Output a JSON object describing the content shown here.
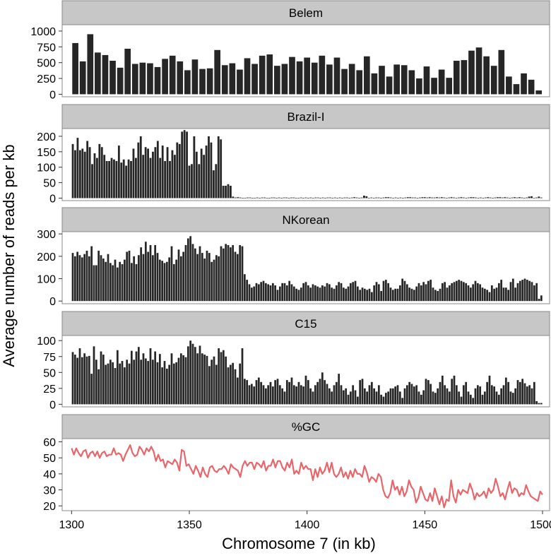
{
  "chart_data": {
    "type": "bar",
    "xlabel": "Chromosome 7 (in kb)",
    "ylabel": "Average number of reads per kb",
    "x_range": [
      1300,
      1500
    ],
    "xlim": [
      1296,
      1503
    ],
    "x_ticks": [
      1300,
      1350,
      1400,
      1450,
      1500
    ],
    "colors": {
      "bar": "#262626",
      "line": "#e8656a",
      "strip": "#c7c7c7",
      "panel_border": "#8a8a8a"
    },
    "panels": [
      {
        "name": "Belem",
        "type": "bar",
        "ylim": [
          -40,
          1100
        ],
        "y_ticks": [
          0,
          250,
          500,
          750,
          1000
        ],
        "values": [
          810,
          520,
          950,
          660,
          620,
          530,
          420,
          720,
          480,
          500,
          490,
          430,
          560,
          610,
          520,
          380,
          550,
          400,
          410,
          700,
          460,
          490,
          390,
          570,
          480,
          610,
          630,
          450,
          480,
          590,
          520,
          580,
          500,
          610,
          470,
          580,
          400,
          480,
          380,
          600,
          330,
          450,
          280,
          470,
          460,
          380,
          250,
          440,
          260,
          390,
          260,
          530,
          540,
          690,
          740,
          600,
          450,
          700,
          280,
          160,
          330,
          230,
          60
        ]
      },
      {
        "name": "Brazil-I",
        "type": "bar",
        "ylim": [
          -8,
          225
        ],
        "y_ticks": [
          0,
          50,
          100,
          150,
          200
        ],
        "values": [
          175,
          155,
          195,
          155,
          160,
          150,
          185,
          165,
          110,
          145,
          130,
          175,
          165,
          140,
          120,
          120,
          130,
          125,
          120,
          170,
          115,
          125,
          105,
          125,
          120,
          160,
          130,
          180,
          200,
          140,
          165,
          160,
          130,
          150,
          165,
          185,
          130,
          170,
          120,
          165,
          120,
          155,
          140,
          180,
          175,
          215,
          220,
          215,
          105,
          110,
          200,
          150,
          110,
          160,
          140,
          170,
          200,
          180,
          90,
          110,
          200,
          190,
          40,
          40,
          45,
          40,
          5,
          2,
          3,
          2,
          1,
          1,
          2,
          2,
          1,
          1,
          2,
          1,
          2,
          2,
          1,
          1,
          2,
          2,
          1,
          2,
          1,
          2,
          2,
          1,
          2,
          2,
          1,
          1,
          2,
          1,
          2,
          1,
          2,
          1,
          2,
          2,
          1,
          2,
          1,
          2,
          2,
          1,
          2,
          1,
          2,
          1,
          2,
          2,
          1,
          2,
          3,
          2,
          1,
          2,
          8,
          6,
          1,
          2,
          1,
          2,
          2,
          1,
          2,
          3,
          3,
          2,
          1,
          2,
          1,
          2,
          1,
          2,
          3,
          3,
          2,
          2,
          1,
          2,
          3,
          3,
          2,
          3,
          2,
          2,
          3,
          2,
          3,
          2,
          1,
          2,
          3,
          2,
          1,
          2,
          3,
          2,
          1,
          2,
          3,
          3,
          2,
          1,
          2,
          1,
          2,
          3,
          2,
          1,
          2,
          3,
          3,
          2,
          3,
          2,
          1,
          2,
          3,
          2,
          3,
          2,
          1,
          2,
          5,
          6,
          1,
          2,
          5,
          2
        ]
      },
      {
        "name": "NKorean",
        "type": "bar",
        "ylim": [
          -12,
          310
        ],
        "y_ticks": [
          0,
          100,
          200,
          300
        ],
        "values": [
          215,
          200,
          220,
          205,
          195,
          210,
          225,
          200,
          245,
          160,
          160,
          225,
          205,
          190,
          175,
          210,
          170,
          160,
          185,
          150,
          175,
          165,
          185,
          220,
          225,
          170,
          200,
          165,
          205,
          240,
          210,
          265,
          220,
          250,
          205,
          250,
          215,
          185,
          180,
          170,
          175,
          195,
          245,
          165,
          185,
          230,
          200,
          220,
          250,
          280,
          290,
          255,
          235,
          210,
          245,
          215,
          190,
          225,
          215,
          175,
          185,
          205,
          200,
          245,
          235,
          255,
          250,
          240,
          250,
          220,
          210,
          250,
          245,
          120,
          95,
          75,
          60,
          65,
          80,
          75,
          85,
          90,
          80,
          75,
          70,
          80,
          70,
          50,
          65,
          80,
          80,
          70,
          90,
          75,
          65,
          55,
          50,
          60,
          80,
          85,
          70,
          60,
          75,
          70,
          65,
          60,
          70,
          65,
          80,
          75,
          60,
          55,
          70,
          85,
          80,
          60,
          55,
          65,
          80,
          85,
          90,
          65,
          50,
          60,
          55,
          50,
          55,
          40,
          70,
          85,
          75,
          45,
          90,
          95,
          80,
          60,
          50,
          55,
          55,
          70,
          100,
          90,
          75,
          60,
          55,
          50,
          65,
          80,
          70,
          85,
          75,
          90,
          95,
          60,
          50,
          45,
          55,
          80,
          85,
          60,
          70,
          80,
          85,
          90,
          95,
          90,
          85,
          80,
          70,
          60,
          75,
          90,
          80,
          75,
          60,
          55,
          50,
          40,
          70,
          55,
          60,
          80,
          95,
          60,
          60,
          50,
          85,
          100,
          60,
          80,
          90,
          95,
          100,
          95,
          90,
          85,
          70,
          80,
          10,
          25
        ]
      },
      {
        "name": "C15",
        "type": "bar",
        "ylim": [
          -4,
          108
        ],
        "y_ticks": [
          0,
          25,
          50,
          75,
          100
        ],
        "values": [
          82,
          78,
          73,
          88,
          74,
          80,
          75,
          76,
          48,
          91,
          70,
          55,
          83,
          78,
          62,
          64,
          70,
          66,
          57,
          85,
          64,
          68,
          58,
          70,
          64,
          84,
          70,
          83,
          90,
          70,
          80,
          72,
          68,
          88,
          70,
          83,
          66,
          79,
          58,
          68,
          56,
          62,
          80,
          64,
          66,
          73,
          80,
          77,
          74,
          91,
          100,
          95,
          90,
          80,
          92,
          80,
          78,
          76,
          60,
          70,
          75,
          62,
          88,
          82,
          85,
          75,
          58,
          62,
          65,
          55,
          42,
          64,
          88,
          40,
          38,
          30,
          32,
          28,
          38,
          42,
          35,
          30,
          25,
          30,
          35,
          28,
          38,
          40,
          30,
          25,
          20,
          38,
          35,
          42,
          30,
          28,
          35,
          30,
          28,
          45,
          38,
          25,
          20,
          30,
          35,
          40,
          50,
          38,
          32,
          25,
          20,
          30,
          35,
          48,
          30,
          22,
          25,
          15,
          20,
          30,
          22,
          12,
          38,
          40,
          25,
          20,
          30,
          35,
          25,
          20,
          30,
          15,
          12,
          18,
          20,
          25,
          25,
          28,
          30,
          20,
          10,
          25,
          30,
          35,
          32,
          28,
          30,
          20,
          15,
          22,
          40,
          38,
          32,
          20,
          18,
          25,
          35,
          45,
          30,
          25,
          20,
          40,
          45,
          30,
          20,
          12,
          30,
          35,
          20,
          15,
          10,
          25,
          30,
          28,
          15,
          20,
          35,
          45,
          30,
          28,
          20,
          15,
          25,
          30,
          42,
          35,
          20,
          18,
          25,
          38,
          35,
          40,
          33,
          28,
          30,
          25,
          35,
          5,
          2,
          2
        ]
      },
      {
        "name": "%GC",
        "type": "line",
        "ylim": [
          17,
          62
        ],
        "y_ticks": [
          20,
          30,
          40,
          50,
          60
        ],
        "values": [
          56,
          52,
          56,
          53,
          51,
          54,
          55,
          50,
          53,
          54,
          51,
          54,
          50,
          53,
          54,
          51,
          52,
          52,
          56,
          52,
          53,
          52,
          48,
          52,
          55,
          58,
          53,
          51,
          52,
          57,
          55,
          52,
          56,
          54,
          57,
          54,
          48,
          52,
          48,
          49,
          44,
          48,
          47,
          46,
          49,
          47,
          42,
          55,
          54,
          45,
          46,
          43,
          40,
          45,
          42,
          38,
          44,
          40,
          38,
          44,
          45,
          42,
          41,
          43,
          43,
          45,
          43,
          40,
          46,
          44,
          43,
          42,
          38,
          45,
          48,
          45,
          47,
          47,
          43,
          47,
          46,
          44,
          48,
          42,
          45,
          45,
          49,
          44,
          48,
          48,
          44,
          42,
          47,
          44,
          49,
          40,
          42,
          40,
          47,
          43,
          45,
          43,
          43,
          36,
          43,
          38,
          44,
          40,
          42,
          47,
          41,
          47,
          40,
          38,
          40,
          44,
          38,
          41,
          37,
          42,
          38,
          43,
          40,
          40,
          38,
          45,
          41,
          35,
          38,
          37,
          35,
          40,
          38,
          30,
          26,
          25,
          28,
          36,
          30,
          32,
          27,
          32,
          26,
          29,
          36,
          32,
          30,
          22,
          25,
          32,
          28,
          24,
          23,
          28,
          23,
          31,
          26,
          21,
          26,
          19,
          24,
          23,
          36,
          26,
          22,
          30,
          27,
          30,
          29,
          28,
          34,
          30,
          24,
          28,
          26,
          27,
          29,
          25,
          31,
          28,
          30,
          37,
          32,
          26,
          28,
          24,
          30,
          35,
          28,
          31,
          30,
          26,
          28,
          27,
          33,
          29,
          26,
          25,
          24,
          23,
          29,
          27
        ]
      }
    ]
  }
}
